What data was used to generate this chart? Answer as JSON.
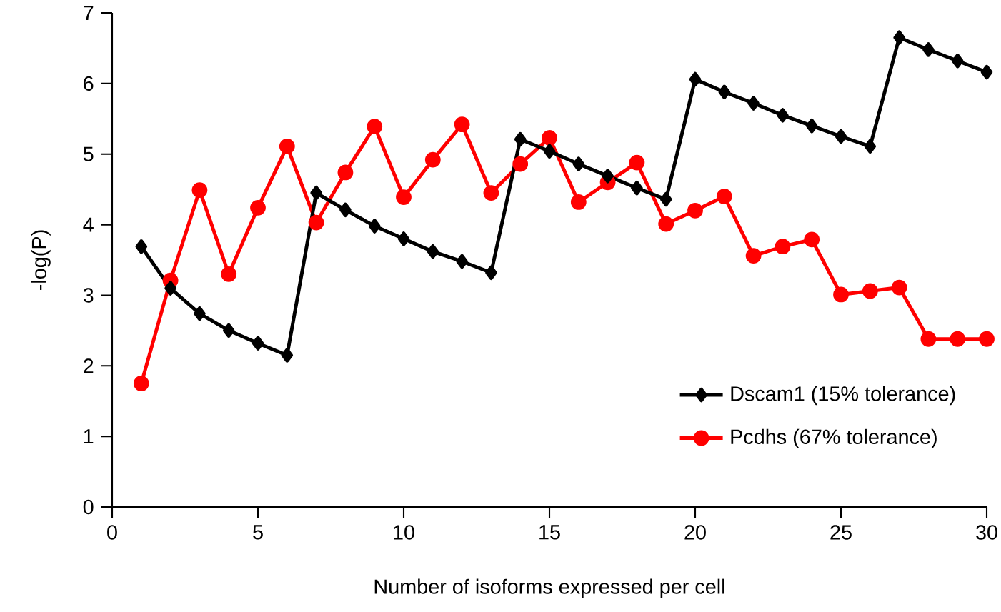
{
  "chart_data": {
    "type": "line",
    "xlabel": "Number of isoforms expressed per cell",
    "ylabel": "-log(P)",
    "x": [
      1,
      2,
      3,
      4,
      5,
      6,
      7,
      8,
      9,
      10,
      11,
      12,
      13,
      14,
      15,
      16,
      17,
      18,
      19,
      20,
      21,
      22,
      23,
      24,
      25,
      26,
      27,
      28,
      29,
      30
    ],
    "xlim": [
      0,
      30
    ],
    "xticks": [
      0,
      5,
      10,
      15,
      20,
      25,
      30
    ],
    "ylim": [
      0,
      7
    ],
    "yticks": [
      0,
      1,
      2,
      3,
      4,
      5,
      6,
      7
    ],
    "grid": false,
    "legend": "bottom right",
    "series": [
      {
        "name": "Dscam1 (15% tolerance)",
        "color": "#000000",
        "marker": "diamond",
        "values": [
          3.69,
          3.1,
          2.74,
          2.5,
          2.32,
          2.15,
          4.45,
          4.21,
          3.98,
          3.8,
          3.62,
          3.48,
          3.32,
          5.21,
          5.04,
          4.86,
          4.69,
          4.52,
          4.36,
          6.06,
          5.88,
          5.72,
          5.55,
          5.4,
          5.25,
          5.11,
          6.65,
          6.48,
          6.32,
          6.16
        ]
      },
      {
        "name": "Pcdhs (67% tolerance)",
        "color": "#ff0000",
        "marker": "circle",
        "values": [
          1.75,
          3.21,
          4.49,
          3.3,
          4.24,
          5.11,
          4.03,
          4.74,
          5.39,
          4.39,
          4.92,
          5.42,
          4.45,
          4.86,
          5.23,
          4.32,
          4.6,
          4.88,
          4.01,
          4.2,
          4.4,
          3.56,
          3.69,
          3.79,
          3.01,
          3.06,
          3.11,
          2.38,
          2.38,
          2.38
        ]
      }
    ]
  }
}
